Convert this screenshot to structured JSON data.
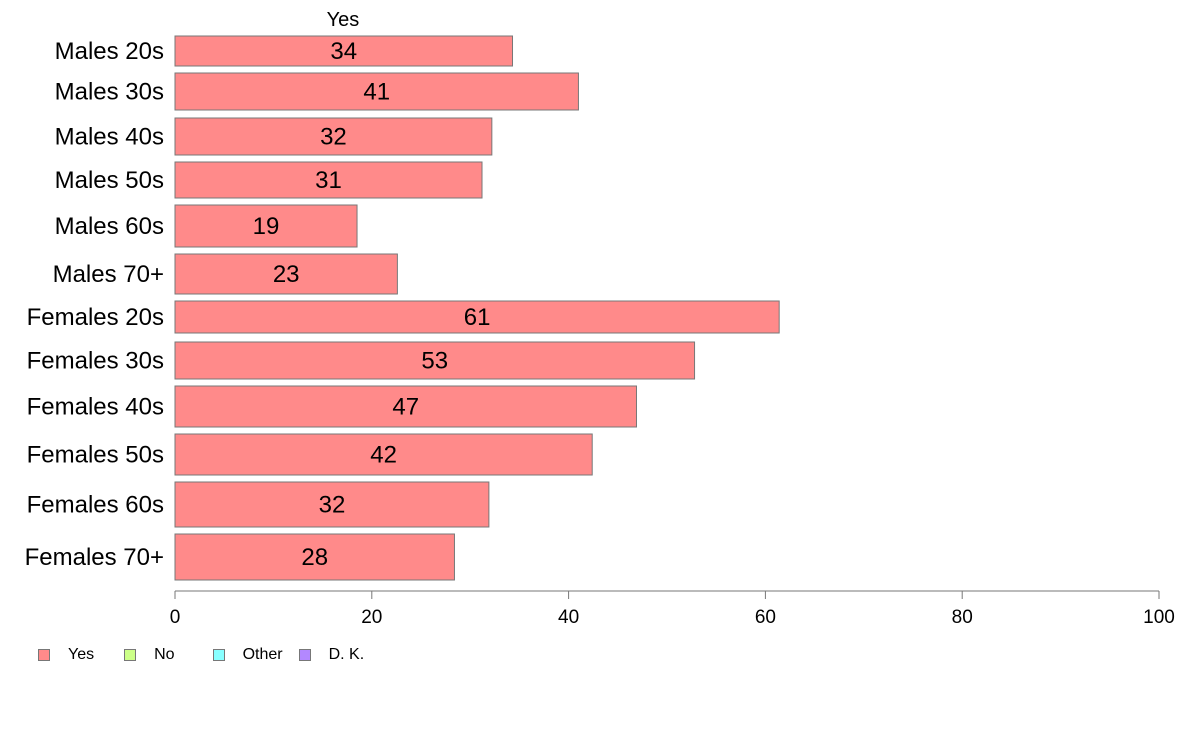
{
  "chart_data": {
    "type": "bar",
    "orientation": "horizontal",
    "series_header": "Yes",
    "categories": [
      "Males 20s",
      "Males 30s",
      "Males 40s",
      "Males 50s",
      "Males 60s",
      "Males 70+",
      "Females 20s",
      "Females 30s",
      "Females 40s",
      "Females 50s",
      "Females 60s",
      "Females 70+"
    ],
    "series": [
      {
        "name": "Yes",
        "color": "#ff8a8a",
        "values": [
          34.3,
          41.0,
          32.2,
          31.2,
          18.5,
          22.6,
          61.4,
          52.8,
          46.9,
          42.4,
          31.9,
          28.4
        ],
        "labels": [
          "34",
          "41",
          "32",
          "31",
          "19",
          "23",
          "61",
          "53",
          "47",
          "42",
          "32",
          "28"
        ]
      }
    ],
    "xlim": [
      0,
      100
    ],
    "xticks": [
      0,
      20,
      40,
      60,
      80,
      100
    ],
    "xtick_labels": [
      "0",
      "20",
      "40",
      "60",
      "80",
      "100"
    ],
    "grid": false,
    "legend_position": "bottom-left",
    "legend": [
      {
        "label": "Yes",
        "color": "#ff8a8a"
      },
      {
        "label": "No",
        "color": "#ccff88"
      },
      {
        "label": "Other",
        "color": "#88ffff"
      },
      {
        "label": "D. K.",
        "color": "#b388ff"
      }
    ]
  }
}
